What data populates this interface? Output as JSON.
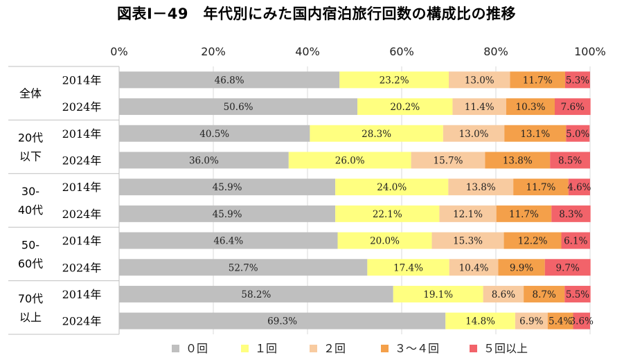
{
  "chart_data": {
    "type": "bar",
    "orientation": "horizontal",
    "stacked": true,
    "title": "図表Ⅰ－49　年代別にみた国内宿泊旅行回数の構成比の推移",
    "x_ticks": [
      "0%",
      "20%",
      "40%",
      "60%",
      "80%",
      "100%"
    ],
    "xlim": [
      0,
      100
    ],
    "legend_position": "bottom",
    "groups": [
      {
        "name": "全体",
        "lines": [
          "全体"
        ]
      },
      {
        "name": "20代以下",
        "lines": [
          "20代",
          "以下"
        ]
      },
      {
        "name": "30-40代",
        "lines": [
          "30-",
          "40代"
        ]
      },
      {
        "name": "50-60代",
        "lines": [
          "50-",
          "60代"
        ]
      },
      {
        "name": "70代以上",
        "lines": [
          "70代",
          "以上"
        ]
      }
    ],
    "rows": [
      {
        "group": "全体",
        "year": "2014年"
      },
      {
        "group": "全体",
        "year": "2024年"
      },
      {
        "group": "20代以下",
        "year": "2014年"
      },
      {
        "group": "20代以下",
        "year": "2024年"
      },
      {
        "group": "30-40代",
        "year": "2014年"
      },
      {
        "group": "30-40代",
        "year": "2024年"
      },
      {
        "group": "50-60代",
        "year": "2014年"
      },
      {
        "group": "50-60代",
        "year": "2024年"
      },
      {
        "group": "70代以上",
        "year": "2014年"
      },
      {
        "group": "70代以上",
        "year": "2024年"
      }
    ],
    "series": [
      {
        "name": "０回",
        "color": "#bfbfbf",
        "values": [
          46.8,
          50.6,
          40.5,
          36.0,
          45.9,
          45.9,
          46.4,
          52.7,
          58.2,
          69.3
        ]
      },
      {
        "name": "１回",
        "color": "#ffff80",
        "values": [
          23.2,
          20.2,
          28.3,
          26.0,
          24.0,
          22.1,
          20.0,
          17.4,
          19.1,
          14.8
        ]
      },
      {
        "name": "２回",
        "color": "#f8cba0",
        "values": [
          13.0,
          11.4,
          13.0,
          15.7,
          13.8,
          12.1,
          15.3,
          10.4,
          8.6,
          6.9
        ]
      },
      {
        "name": "３～４回",
        "color": "#f4a04a",
        "values": [
          11.7,
          10.3,
          13.1,
          13.8,
          11.7,
          11.7,
          12.2,
          9.9,
          8.7,
          5.4
        ]
      },
      {
        "name": "５回以上",
        "color": "#f2636a",
        "values": [
          5.3,
          7.6,
          5.0,
          8.5,
          4.6,
          8.3,
          6.1,
          9.7,
          5.5,
          3.6
        ]
      }
    ]
  }
}
